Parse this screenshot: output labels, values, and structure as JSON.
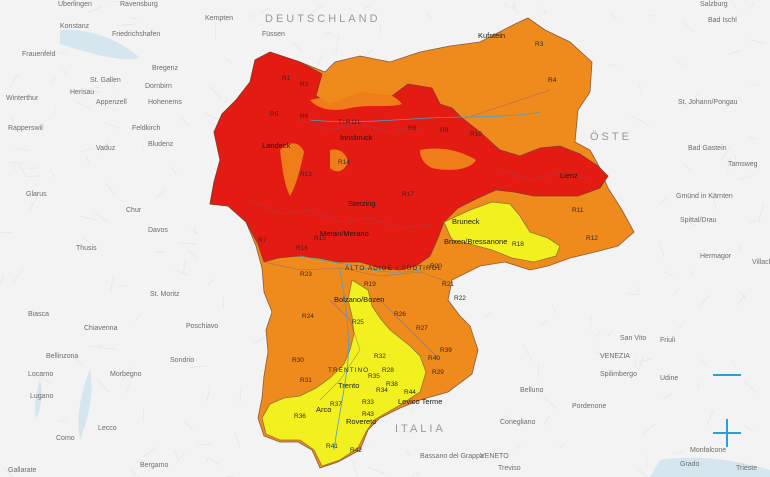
{
  "colors": {
    "background": "#f2f2f2",
    "danger_high": "#e31b13",
    "danger_considerable": "#ef8a1c",
    "danger_moderate": "#f2f01e",
    "border": "#7a4a3a",
    "water": "#cfe3ee",
    "control": "#2a9fd8"
  },
  "countries": [
    "DEUTSCHLAND",
    "ÖSTE",
    "ITALIA"
  ],
  "places": [
    "Überlingen",
    "Ravensburg",
    "Kempten",
    "Füssen",
    "Salzburg",
    "Bad Ischl",
    "Konstanz",
    "Friedrichshafen",
    "Frauenfeld",
    "Bregenz",
    "Dornbirn",
    "Winterthur",
    "St. Gallen",
    "Herisau",
    "Appenzell",
    "Hohenems",
    "Rapperswil",
    "Feldkirch",
    "Vaduz",
    "Bludenz",
    "Glarus",
    "Chur",
    "Davos",
    "Thusis",
    "St. Moritz",
    "Poschiavo",
    "Biasca",
    "Chiavenna",
    "Bellinzona",
    "Locarno",
    "Lugano",
    "Morbegno",
    "Sondrio",
    "Como",
    "Lecco",
    "Bergamo",
    "Gallarate",
    "St. Johann/Pongau",
    "Bad Gastein",
    "Tamsweg",
    "Spittal/Drau",
    "Hermagor",
    "Villach",
    "Gmünd in Kärnten",
    "Udine",
    "Trieste",
    "Monfalcone",
    "Grado",
    "Pordenone",
    "Conegliano",
    "Treviso",
    "Bassano del Grappa",
    "Spilimbergo",
    "Belluno",
    "San Vito",
    "Friuli",
    "VENEZIA",
    "VENETO"
  ],
  "cities": [
    "Bolzano/Bozen",
    "Trento",
    "Rovereto",
    "Arco",
    "Levico Terme",
    "Landeck",
    "Innsbruck",
    "Lienz",
    "Brixen/Bressanone",
    "Meran/Merano",
    "Sterzing",
    "Bruneck",
    "Kufstein"
  ],
  "region_label": "ALTO ADIGE / SÜDTIROL",
  "trentino_label": "TRENTINO",
  "tirol_label": "TIROL",
  "regions": [
    "R1",
    "R2",
    "R3",
    "R4",
    "R5",
    "R6",
    "R7",
    "R8",
    "R9",
    "R10",
    "R11",
    "R12",
    "R13",
    "R14",
    "R15",
    "R16",
    "R17",
    "R18",
    "R19",
    "R20",
    "R21",
    "R22",
    "R23",
    "R24",
    "R25",
    "R26",
    "R27",
    "R28",
    "R29",
    "R30",
    "R31",
    "R32",
    "R33",
    "R34",
    "R35",
    "R36",
    "R37",
    "R38",
    "R39",
    "R40",
    "R41",
    "R42",
    "R43",
    "R44"
  ],
  "controls": {
    "zoom_out_label": "Zoom out",
    "zoom_in_label": "Zoom in"
  }
}
